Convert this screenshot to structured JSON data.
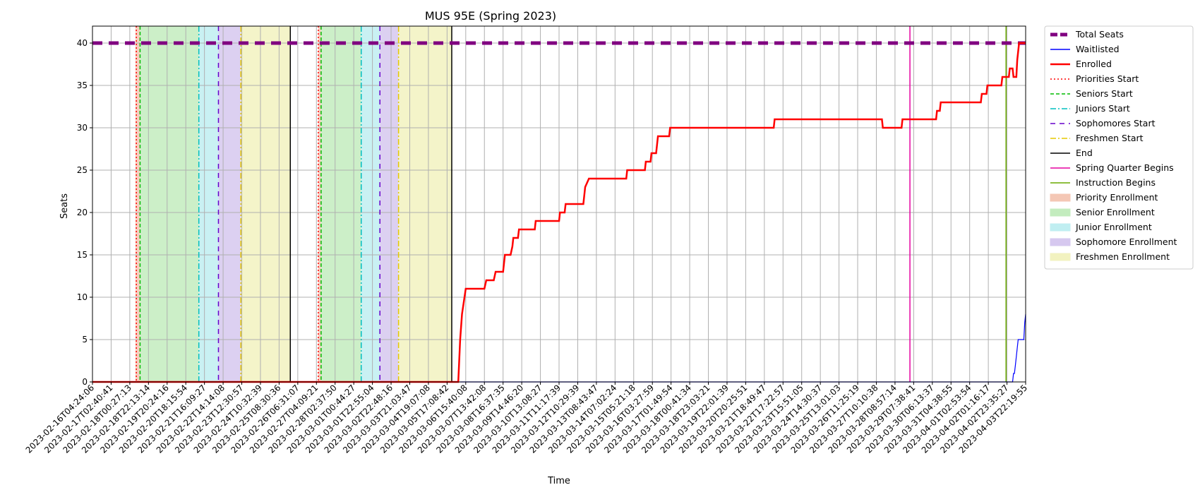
{
  "chart_data": {
    "type": "line",
    "title": "MUS 95E (Spring 2023)",
    "xlabel": "Time",
    "ylabel": "Seats",
    "ylim": [
      0,
      42
    ],
    "yticks": [
      0,
      5,
      10,
      15,
      20,
      25,
      30,
      35,
      40
    ],
    "grid": true,
    "legend_position": "outside-right",
    "x_tick_labels": [
      "2023-02-16T04:24:06",
      "2023-02-17T02:40:41",
      "2023-02-18T00:27:13",
      "2023-02-18T22:13:14",
      "2023-02-19T20:24:16",
      "2023-02-20T18:15:54",
      "2023-02-21T16:09:27",
      "2023-02-22T14:14:08",
      "2023-02-23T12:30:57",
      "2023-02-24T10:32:39",
      "2023-02-25T08:30:36",
      "2023-02-26T06:31:07",
      "2023-02-27T04:09:21",
      "2023-02-28T02:37:50",
      "2023-03-01T00:44:27",
      "2023-03-01T22:55:04",
      "2023-03-02T22:48:16",
      "2023-03-03T21:03:47",
      "2023-03-04T19:07:08",
      "2023-03-05T17:08:42",
      "2023-03-06T15:40:08",
      "2023-03-07T13:42:08",
      "2023-03-08T16:37:35",
      "2023-03-09T14:46:20",
      "2023-03-10T13:08:27",
      "2023-03-11T11:17:39",
      "2023-03-12T10:29:39",
      "2023-03-13T08:43:47",
      "2023-03-14T07:02:24",
      "2023-03-15T05:21:18",
      "2023-03-16T03:27:59",
      "2023-03-17T01:49:54",
      "2023-03-18T00:41:34",
      "2023-03-18T23:03:21",
      "2023-03-19T22:01:39",
      "2023-03-20T20:25:51",
      "2023-03-21T18:49:47",
      "2023-03-22T17:22:57",
      "2023-03-23T15:51:05",
      "2023-03-24T14:30:37",
      "2023-03-25T13:01:03",
      "2023-03-26T11:25:19",
      "2023-03-27T10:10:38",
      "2023-03-28T08:57:14",
      "2023-03-29T07:38:41",
      "2023-03-30T06:13:37",
      "2023-03-31T04:38:55",
      "2023-04-01T02:53:54",
      "2023-04-02T01:16:17",
      "2023-04-02T23:35:27",
      "2023-04-03T22:19:55"
    ],
    "x_range_ticks": [
      0,
      50
    ],
    "total_seats": 40,
    "series": [
      {
        "name": "Enrolled",
        "color": "#ff0000",
        "points": [
          [
            0,
            0
          ],
          [
            19.6,
            0
          ],
          [
            19.7,
            5
          ],
          [
            19.8,
            8
          ],
          [
            20.0,
            11
          ],
          [
            21.0,
            11
          ],
          [
            21.1,
            12
          ],
          [
            21.5,
            12
          ],
          [
            21.6,
            13
          ],
          [
            22.0,
            13
          ],
          [
            22.1,
            15
          ],
          [
            22.4,
            15
          ],
          [
            22.5,
            16
          ],
          [
            22.55,
            17
          ],
          [
            22.8,
            17
          ],
          [
            22.85,
            18
          ],
          [
            23.7,
            18
          ],
          [
            23.75,
            19
          ],
          [
            25.0,
            19
          ],
          [
            25.05,
            20
          ],
          [
            25.3,
            20
          ],
          [
            25.35,
            21
          ],
          [
            26.3,
            21
          ],
          [
            26.35,
            22
          ],
          [
            26.4,
            23
          ],
          [
            26.6,
            24
          ],
          [
            28.6,
            24
          ],
          [
            28.65,
            25
          ],
          [
            29.6,
            25
          ],
          [
            29.65,
            26
          ],
          [
            29.9,
            26
          ],
          [
            29.95,
            27
          ],
          [
            30.2,
            27
          ],
          [
            30.25,
            28
          ],
          [
            30.3,
            29
          ],
          [
            30.9,
            29
          ],
          [
            30.95,
            30
          ],
          [
            36.5,
            30
          ],
          [
            36.55,
            31
          ],
          [
            42.3,
            31
          ],
          [
            42.35,
            30
          ],
          [
            43.35,
            30
          ],
          [
            43.4,
            31
          ],
          [
            45.2,
            31
          ],
          [
            45.25,
            32
          ],
          [
            45.4,
            32
          ],
          [
            45.45,
            33
          ],
          [
            47.6,
            33
          ],
          [
            47.65,
            34
          ],
          [
            47.9,
            34
          ],
          [
            47.95,
            35
          ],
          [
            48.7,
            35
          ],
          [
            48.75,
            36
          ],
          [
            49.1,
            36
          ],
          [
            49.15,
            37
          ],
          [
            49.3,
            37
          ],
          [
            49.35,
            36
          ],
          [
            49.5,
            36
          ],
          [
            49.55,
            38
          ],
          [
            49.65,
            40
          ],
          [
            50,
            40
          ]
        ]
      },
      {
        "name": "Waitlisted",
        "color": "#0000ff",
        "points": [
          [
            19.7,
            0
          ],
          [
            49.3,
            0
          ],
          [
            49.35,
            1
          ],
          [
            49.4,
            1
          ],
          [
            49.45,
            2
          ],
          [
            49.6,
            5
          ],
          [
            49.9,
            5
          ],
          [
            49.95,
            7
          ],
          [
            50,
            8
          ]
        ]
      }
    ],
    "gap_segments": [
      [
        11.15,
        12.15
      ]
    ],
    "periods": [
      {
        "name": "Priority Enrollment",
        "color": "#f4c7b5",
        "start": 2.3,
        "end": 2.55
      },
      {
        "name": "Senior Enrollment",
        "color": "#c3ecbe",
        "start": 2.55,
        "end": 5.7
      },
      {
        "name": "Junior Enrollment",
        "color": "#c0eef1",
        "start": 5.7,
        "end": 6.75
      },
      {
        "name": "Sophomore Enrollment",
        "color": "#d6c8ef",
        "start": 6.75,
        "end": 7.95
      },
      {
        "name": "Freshmen Enrollment",
        "color": "#f2f2c0",
        "start": 7.95,
        "end": 10.6
      },
      {
        "name": "Priority Enrollment",
        "color": "#f4c7b5",
        "start": 12.1,
        "end": 12.25
      },
      {
        "name": "Senior Enrollment",
        "color": "#c3ecbe",
        "start": 12.25,
        "end": 14.4
      },
      {
        "name": "Junior Enrollment",
        "color": "#c0eef1",
        "start": 14.4,
        "end": 15.4
      },
      {
        "name": "Sophomore Enrollment",
        "color": "#d6c8ef",
        "start": 15.4,
        "end": 16.4
      },
      {
        "name": "Freshmen Enrollment",
        "color": "#f2f2c0",
        "start": 16.4,
        "end": 19.25
      }
    ],
    "vlines": [
      {
        "name": "Priorities Start",
        "color": "#ff0000",
        "x": 2.35,
        "style": "dotted"
      },
      {
        "name": "Seniors Start",
        "color": "#00bb00",
        "x": 2.55,
        "style": "dashed"
      },
      {
        "name": "Juniors Start",
        "color": "#00bfbf",
        "x": 5.7,
        "style": "dashdot"
      },
      {
        "name": "Sophomores Start",
        "color": "#6600cc",
        "x": 6.75,
        "style": "loosedash"
      },
      {
        "name": "Freshmen Start",
        "color": "#e6c800",
        "x": 7.95,
        "style": "dashdot"
      },
      {
        "name": "End",
        "color": "#000000",
        "x": 10.6,
        "style": "solid"
      },
      {
        "name": "Priorities Start",
        "color": "#ff0000",
        "x": 12.1,
        "style": "dotted"
      },
      {
        "name": "Seniors Start",
        "color": "#00bb00",
        "x": 12.25,
        "style": "dashed"
      },
      {
        "name": "Juniors Start",
        "color": "#00bfbf",
        "x": 14.4,
        "style": "dashdot"
      },
      {
        "name": "Sophomores Start",
        "color": "#6600cc",
        "x": 15.4,
        "style": "loosedash"
      },
      {
        "name": "Freshmen Start",
        "color": "#e6c800",
        "x": 16.4,
        "style": "dashdot"
      },
      {
        "name": "End",
        "color": "#000000",
        "x": 19.25,
        "style": "solid"
      },
      {
        "name": "Spring Quarter Begins",
        "color": "#e600a0",
        "x": 43.8,
        "style": "solid"
      },
      {
        "name": "Instruction Begins",
        "color": "#6aaa00",
        "x": 48.95,
        "style": "solid"
      }
    ],
    "legend": [
      {
        "label": "Total Seats",
        "kind": "line",
        "color": "#800080",
        "style": "thickdash"
      },
      {
        "label": "Waitlisted",
        "kind": "line",
        "color": "#0000ff",
        "style": "solid"
      },
      {
        "label": "Enrolled",
        "kind": "line",
        "color": "#ff0000",
        "style": "solidthick"
      },
      {
        "label": "Priorities Start",
        "kind": "line",
        "color": "#ff0000",
        "style": "dotted"
      },
      {
        "label": "Seniors Start",
        "kind": "line",
        "color": "#00bb00",
        "style": "dashed"
      },
      {
        "label": "Juniors Start",
        "kind": "line",
        "color": "#00bfbf",
        "style": "dashdot"
      },
      {
        "label": "Sophomores Start",
        "kind": "line",
        "color": "#6600cc",
        "style": "loosedash"
      },
      {
        "label": "Freshmen Start",
        "kind": "line",
        "color": "#e6c800",
        "style": "dashdot"
      },
      {
        "label": "End",
        "kind": "line",
        "color": "#000000",
        "style": "solid"
      },
      {
        "label": "Spring Quarter Begins",
        "kind": "line",
        "color": "#e600a0",
        "style": "solid"
      },
      {
        "label": "Instruction Begins",
        "kind": "line",
        "color": "#6aaa00",
        "style": "solid"
      },
      {
        "label": "Priority Enrollment",
        "kind": "patch",
        "color": "#f4c7b5"
      },
      {
        "label": "Senior Enrollment",
        "kind": "patch",
        "color": "#c3ecbe"
      },
      {
        "label": "Junior Enrollment",
        "kind": "patch",
        "color": "#c0eef1"
      },
      {
        "label": "Sophomore Enrollment",
        "kind": "patch",
        "color": "#d6c8ef"
      },
      {
        "label": "Freshmen Enrollment",
        "kind": "patch",
        "color": "#f2f2c0"
      }
    ]
  }
}
